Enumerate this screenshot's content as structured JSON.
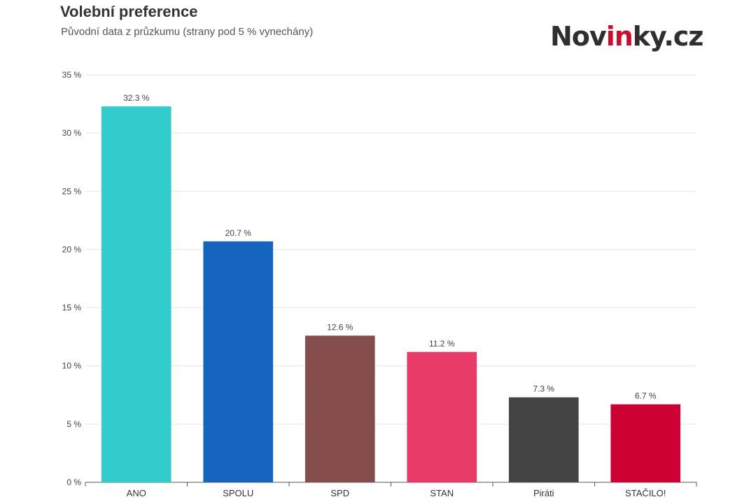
{
  "header": {
    "title": "Volební preference",
    "subtitle": "Původní data z průzkumu (strany pod 5 % vynechány)"
  },
  "brand": {
    "before": "Nov",
    "accent": "in",
    "after": "ky.cz",
    "accent_color": "#c8102e"
  },
  "chart_data": {
    "type": "bar",
    "title": "Volební preference",
    "subtitle": "Původní data z průzkumu (strany pod 5 % vynechány)",
    "categories": [
      "ANO",
      "SPOLU",
      "SPD",
      "STAN",
      "Piráti",
      "STAČILO!"
    ],
    "values": [
      32.3,
      20.7,
      12.6,
      11.2,
      7.3,
      6.7
    ],
    "value_labels": [
      "32.3 %",
      "20.7 %",
      "12.6 %",
      "11.2 %",
      "7.3 %",
      "6.7 %"
    ],
    "colors": [
      "#33cccc",
      "#1565c0",
      "#844e4e",
      "#e83a66",
      "#444444",
      "#cc0033"
    ],
    "ylim": [
      0,
      35
    ],
    "yticks": [
      0,
      5,
      10,
      15,
      20,
      25,
      30,
      35
    ],
    "ytick_labels": [
      "0 %",
      "5 %",
      "10 %",
      "15 %",
      "20 %",
      "25 %",
      "30 %",
      "35 %"
    ],
    "grid": true,
    "legend": "none"
  }
}
